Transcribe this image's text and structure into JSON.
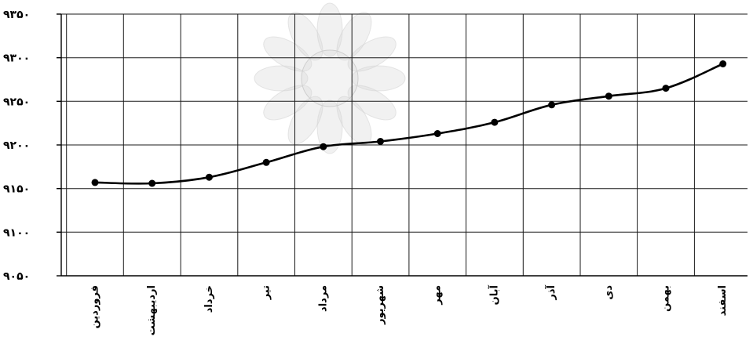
{
  "chart_data": {
    "type": "line",
    "title": "",
    "xlabel": "",
    "ylabel": "",
    "categories": [
      "فروردین",
      "اردیبهشت",
      "خرداد",
      "تیر",
      "مرداد",
      "شهریور",
      "مهر",
      "آبان",
      "آذر",
      "دی",
      "بهمن",
      "اسفند"
    ],
    "series": [
      {
        "values": [
          9157,
          9156,
          9163,
          9180,
          9198,
          9204,
          9213,
          9226,
          9246,
          9256,
          9265,
          9293
        ]
      }
    ],
    "ylim": [
      9050,
      9350
    ],
    "yticks": [
      9050,
      9100,
      9150,
      9200,
      9250,
      9300,
      9350
    ],
    "ytick_labels": [
      "۹۰۵۰",
      "۹۱۰۰",
      "۹۱۵۰",
      "۹۲۰۰",
      "۹۲۵۰",
      "۹۳۰۰",
      "۹۳۵۰"
    ],
    "grid": true,
    "legend": "none",
    "colors": {
      "line": "#000000",
      "grid": "#1a1a1a",
      "watermark": "#d8d8d8"
    }
  }
}
